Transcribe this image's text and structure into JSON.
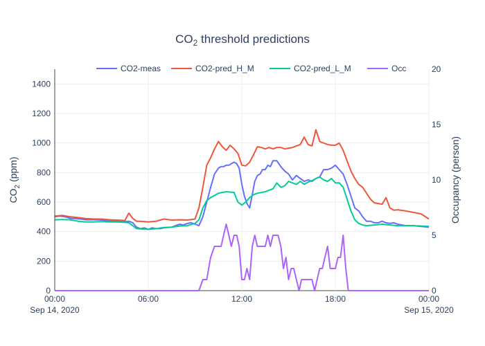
{
  "chart_data": {
    "type": "line",
    "title_main": "CO",
    "title_sub": "2",
    "title_rest": " threshold predictions",
    "xlabel": "",
    "ylabel_main": "CO",
    "ylabel_sub": "2",
    "ylabel_rest": " (ppm)",
    "y2label": "Occupancy (person)",
    "x_range_hours": [
      0,
      24
    ],
    "xticks": [
      {
        "h": 0,
        "line1": "00:00",
        "line2": "Sep 14, 2020"
      },
      {
        "h": 6,
        "line1": "06:00",
        "line2": ""
      },
      {
        "h": 12,
        "line1": "12:00",
        "line2": ""
      },
      {
        "h": 18,
        "line1": "18:00",
        "line2": ""
      },
      {
        "h": 24,
        "line1": "00:00",
        "line2": "Sep 15, 2020"
      }
    ],
    "ylim": [
      0,
      1500
    ],
    "yticks": [
      0,
      200,
      400,
      600,
      800,
      1000,
      1200,
      1400
    ],
    "y2lim": [
      0,
      20
    ],
    "y2ticks": [
      0,
      5,
      10,
      15,
      20
    ],
    "grid": true,
    "legend_position": "top",
    "series": [
      {
        "name": "CO2-meas",
        "color": "#636efa",
        "axis": "y",
        "x": [
          0,
          0.33,
          0.67,
          1,
          1.33,
          1.67,
          2,
          2.5,
          3,
          3.5,
          4,
          4.5,
          4.75,
          5,
          5.25,
          5.5,
          5.75,
          6,
          6.25,
          6.5,
          6.75,
          7,
          7.5,
          7.75,
          8,
          8.25,
          8.5,
          8.75,
          9,
          9.25,
          9.5,
          9.75,
          10,
          10.25,
          10.5,
          10.67,
          10.83,
          11,
          11.17,
          11.33,
          11.5,
          11.67,
          11.83,
          12,
          12.17,
          12.33,
          12.5,
          12.67,
          12.83,
          13,
          13.17,
          13.33,
          13.5,
          13.67,
          13.83,
          14,
          14.25,
          14.5,
          14.75,
          15,
          15.25,
          15.5,
          15.75,
          16,
          16.25,
          16.5,
          16.75,
          17,
          17.25,
          17.5,
          17.75,
          18,
          18.25,
          18.5,
          18.75,
          19,
          19.25,
          19.5,
          19.75,
          20,
          20.25,
          20.5,
          20.75,
          21,
          21.25,
          21.5,
          21.75,
          22,
          22.5,
          23,
          23.5,
          24
        ],
        "y": [
          500,
          505,
          500,
          490,
          488,
          485,
          480,
          480,
          478,
          472,
          470,
          468,
          470,
          460,
          430,
          420,
          425,
          415,
          425,
          420,
          420,
          425,
          430,
          440,
          450,
          445,
          455,
          460,
          450,
          440,
          500,
          600,
          700,
          790,
          830,
          840,
          840,
          850,
          850,
          860,
          870,
          860,
          830,
          720,
          640,
          590,
          560,
          650,
          740,
          780,
          790,
          820,
          820,
          850,
          840,
          880,
          880,
          840,
          810,
          790,
          750,
          780,
          760,
          740,
          750,
          740,
          760,
          770,
          820,
          820,
          830,
          850,
          820,
          790,
          720,
          640,
          560,
          540,
          500,
          470,
          470,
          460,
          460,
          470,
          460,
          455,
          460,
          450,
          440,
          440,
          435,
          430
        ]
      },
      {
        "name": "CO2-pred_H_M",
        "color": "#ef553b",
        "axis": "y",
        "x": [
          0,
          0.5,
          1,
          1.5,
          2,
          2.5,
          3,
          3.5,
          4,
          4.5,
          4.75,
          5,
          5.25,
          5.5,
          6,
          6.5,
          7,
          7.5,
          8,
          8.5,
          9,
          9.25,
          9.5,
          9.75,
          10,
          10.25,
          10.5,
          10.75,
          11,
          11.25,
          11.5,
          11.75,
          12,
          12.25,
          12.5,
          12.75,
          13,
          13.25,
          13.5,
          13.75,
          14,
          14.25,
          14.5,
          14.75,
          15,
          15.25,
          15.5,
          15.75,
          16,
          16.25,
          16.5,
          16.75,
          17,
          17.25,
          17.5,
          17.75,
          18,
          18.25,
          18.5,
          18.75,
          19,
          19.25,
          19.5,
          19.75,
          20,
          20.25,
          20.5,
          20.75,
          21,
          21.25,
          21.5,
          21.75,
          22,
          22.5,
          23,
          23.5,
          24
        ],
        "y": [
          505,
          510,
          500,
          495,
          488,
          485,
          485,
          480,
          478,
          475,
          525,
          490,
          470,
          470,
          465,
          470,
          485,
          478,
          480,
          478,
          485,
          560,
          700,
          850,
          900,
          960,
          1010,
          975,
          950,
          985,
          960,
          930,
          850,
          845,
          870,
          920,
          975,
          970,
          960,
          970,
          960,
          970,
          970,
          960,
          965,
          970,
          980,
          990,
          1040,
          990,
          980,
          1090,
          1010,
          1000,
          990,
          985,
          985,
          1000,
          950,
          880,
          810,
          760,
          720,
          700,
          660,
          620,
          595,
          590,
          585,
          630,
          560,
          545,
          548,
          540,
          530,
          520,
          485
        ]
      },
      {
        "name": "CO2-pred_L_M",
        "color": "#00cc96",
        "axis": "y",
        "x": [
          0,
          0.5,
          1,
          1.5,
          2,
          2.5,
          3,
          3.5,
          4,
          4.5,
          4.75,
          5,
          5.25,
          5.5,
          6,
          6.5,
          7,
          7.5,
          8,
          8.5,
          9,
          9.25,
          9.5,
          9.75,
          10,
          10.5,
          10.75,
          11,
          11.25,
          11.5,
          11.75,
          12,
          12.25,
          12.5,
          12.75,
          13,
          13.5,
          14,
          14.25,
          14.5,
          14.75,
          15,
          15.25,
          15.5,
          15.75,
          16,
          16.25,
          16.5,
          16.75,
          17,
          17.25,
          17.5,
          17.75,
          18,
          18.25,
          18.5,
          18.75,
          19,
          19.25,
          19.5,
          19.75,
          20,
          20.5,
          21,
          21.5,
          22,
          22.5,
          23,
          23.5,
          24
        ],
        "y": [
          480,
          482,
          480,
          470,
          465,
          465,
          468,
          465,
          465,
          462,
          460,
          440,
          420,
          418,
          415,
          420,
          428,
          430,
          438,
          440,
          455,
          480,
          560,
          610,
          630,
          660,
          665,
          670,
          668,
          665,
          600,
          580,
          600,
          630,
          650,
          660,
          670,
          690,
          730,
          700,
          710,
          740,
          730,
          720,
          740,
          720,
          735,
          745,
          760,
          770,
          750,
          740,
          760,
          730,
          730,
          700,
          620,
          540,
          480,
          455,
          445,
          440,
          445,
          450,
          445,
          440,
          440,
          440,
          438,
          435
        ]
      },
      {
        "name": "Occ",
        "color": "#ab63fa",
        "axis": "y2",
        "x": [
          0,
          9.25,
          9.5,
          9.75,
          10,
          10.25,
          10.5,
          10.67,
          10.83,
          11,
          11.17,
          11.33,
          11.5,
          11.67,
          11.83,
          12,
          12.17,
          12.33,
          12.5,
          12.67,
          12.83,
          13,
          13.17,
          13.33,
          13.5,
          13.67,
          13.83,
          14,
          14.17,
          14.33,
          14.5,
          14.67,
          14.83,
          15,
          15.17,
          15.33,
          15.5,
          15.67,
          15.83,
          16,
          16.17,
          16.33,
          16.5,
          16.67,
          16.83,
          17,
          17.17,
          17.33,
          17.5,
          17.67,
          17.83,
          18,
          18.17,
          18.33,
          18.5,
          18.67,
          18.83,
          19,
          24
        ],
        "y": [
          0,
          0,
          1,
          1,
          3,
          4,
          4,
          4,
          5,
          6,
          5,
          4,
          5,
          5,
          4,
          1,
          1,
          2,
          1,
          4,
          5,
          4,
          4,
          4,
          4,
          5,
          4,
          5,
          5,
          5,
          4,
          2,
          3,
          1,
          2,
          2,
          1,
          0,
          1,
          1,
          1,
          1,
          1,
          0,
          1,
          2,
          2,
          3,
          4,
          2,
          2,
          2,
          3,
          3,
          5,
          2,
          0,
          0,
          0
        ]
      }
    ]
  }
}
